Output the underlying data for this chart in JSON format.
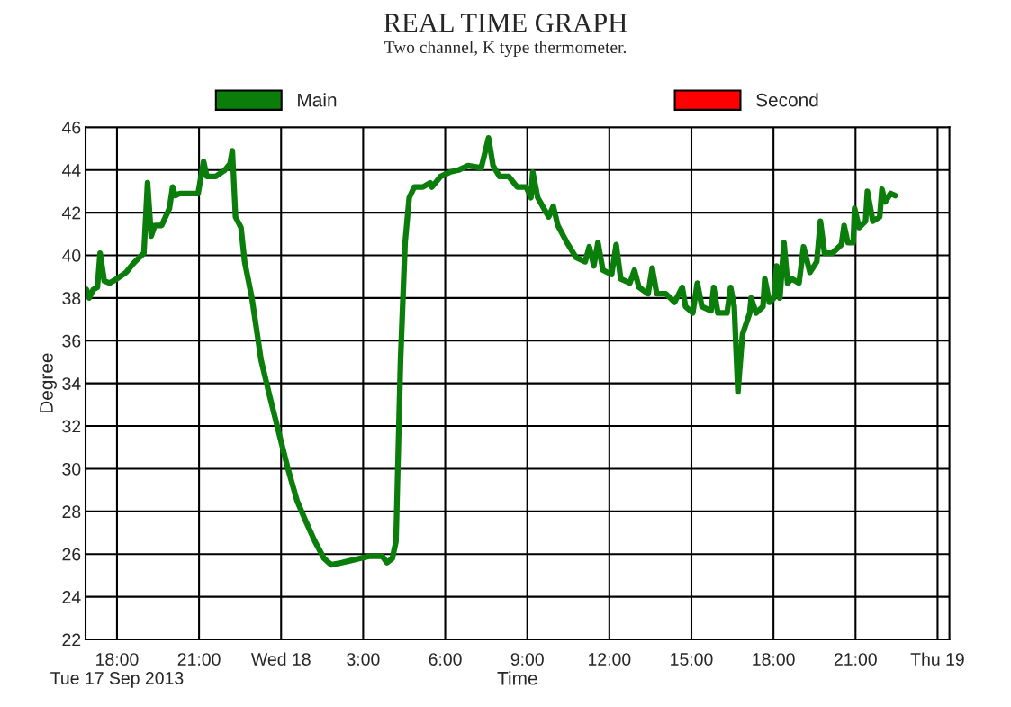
{
  "chart_data": {
    "type": "line",
    "title": "REAL TIME GRAPH",
    "subtitle": "Two channel, K type thermometer.",
    "xlabel": "Time",
    "ylabel": "Degree",
    "x": [
      "2013-09-17T16:53",
      "2013-09-17T16:59",
      "2013-09-17T17:08",
      "2013-09-17T17:17",
      "2013-09-17T17:23",
      "2013-09-17T17:32",
      "2013-09-17T17:44",
      "2013-09-17T18:00",
      "2013-09-17T18:20",
      "2013-09-17T18:35",
      "2013-09-17T18:49",
      "2013-09-17T18:59",
      "2013-09-17T19:07",
      "2013-09-17T19:15",
      "2013-09-17T19:23",
      "2013-09-17T19:38",
      "2013-09-17T19:55",
      "2013-09-17T20:02",
      "2013-09-17T20:08",
      "2013-09-17T20:18",
      "2013-09-17T20:58",
      "2013-09-17T21:10",
      "2013-09-17T21:17",
      "2013-09-17T21:37",
      "2013-09-17T21:57",
      "2013-09-17T22:08",
      "2013-09-17T22:13",
      "2013-09-17T22:20",
      "2013-09-17T22:32",
      "2013-09-17T22:40",
      "2013-09-17T22:56",
      "2013-09-17T23:16",
      "2013-09-17T23:35",
      "2013-09-17T23:55",
      "2013-09-18T00:15",
      "2013-09-18T00:35",
      "2013-09-18T00:55",
      "2013-09-18T01:14",
      "2013-09-18T01:34",
      "2013-09-18T01:50",
      "2013-09-18T02:13",
      "2013-09-18T02:33",
      "2013-09-18T02:53",
      "2013-09-18T03:13",
      "2013-09-18T03:42",
      "2013-09-18T03:52",
      "2013-09-18T04:04",
      "2013-09-18T04:12",
      "2013-09-18T04:22",
      "2013-09-18T04:32",
      "2013-09-18T04:41",
      "2013-09-18T04:52",
      "2013-09-18T05:11",
      "2013-09-18T05:27",
      "2013-09-18T05:31",
      "2013-09-18T05:50",
      "2013-09-18T06:10",
      "2013-09-18T06:30",
      "2013-09-18T06:50",
      "2013-09-18T07:19",
      "2013-09-18T07:35",
      "2013-09-18T07:45",
      "2013-09-18T07:59",
      "2013-09-18T08:19",
      "2013-09-18T08:38",
      "2013-09-18T08:58",
      "2013-09-18T09:08",
      "2013-09-18T09:12",
      "2013-09-18T09:23",
      "2013-09-18T09:47",
      "2013-09-18T09:57",
      "2013-09-18T10:07",
      "2013-09-18T10:27",
      "2013-09-18T10:47",
      "2013-09-18T11:07",
      "2013-09-18T11:16",
      "2013-09-18T11:26",
      "2013-09-18T11:35",
      "2013-09-18T11:46",
      "2013-09-18T12:05",
      "2013-09-18T12:15",
      "2013-09-18T12:25",
      "2013-09-18T12:45",
      "2013-09-18T12:55",
      "2013-09-18T13:05",
      "2013-09-18T13:25",
      "2013-09-18T13:34",
      "2013-09-18T13:44",
      "2013-09-18T14:04",
      "2013-09-18T14:23",
      "2013-09-18T14:40",
      "2013-09-18T14:47",
      "2013-09-18T15:03",
      "2013-09-18T15:13",
      "2013-09-18T15:23",
      "2013-09-18T15:43",
      "2013-09-18T15:49",
      "2013-09-18T15:58",
      "2013-09-18T16:18",
      "2013-09-18T16:26",
      "2013-09-18T16:34",
      "2013-09-18T16:42",
      "2013-09-18T16:52",
      "2013-09-18T17:08",
      "2013-09-18T17:11",
      "2013-09-18T17:22",
      "2013-09-18T17:37",
      "2013-09-18T17:41",
      "2013-09-18T17:51",
      "2013-09-18T18:01",
      "2013-09-18T18:07",
      "2013-09-18T18:14",
      "2013-09-18T18:23",
      "2013-09-18T18:31",
      "2013-09-18T18:40",
      "2013-09-18T18:56",
      "2013-09-18T19:06",
      "2013-09-18T19:20",
      "2013-09-18T19:35",
      "2013-09-18T19:43",
      "2013-09-18T19:52",
      "2013-09-18T20:09",
      "2013-09-18T20:29",
      "2013-09-18T20:35",
      "2013-09-18T20:43",
      "2013-09-18T20:55",
      "2013-09-18T20:58",
      "2013-09-18T21:08",
      "2013-09-18T21:22",
      "2013-09-18T21:26",
      "2013-09-18T21:38",
      "2013-09-18T21:53",
      "2013-09-18T21:58",
      "2013-09-18T22:05",
      "2013-09-18T22:17",
      "2013-09-18T22:27"
    ],
    "series": [
      {
        "name": "Main",
        "color": "#0b7d0b",
        "values": [
          38.4,
          38.0,
          38.4,
          38.5,
          40.1,
          38.8,
          38.7,
          38.9,
          39.2,
          39.6,
          39.9,
          40.1,
          43.4,
          40.9,
          41.4,
          41.4,
          42.2,
          43.2,
          42.8,
          42.9,
          42.9,
          44.4,
          43.7,
          43.7,
          44.0,
          44.3,
          44.9,
          41.8,
          41.3,
          39.7,
          38.0,
          35.1,
          33.4,
          31.7,
          30.0,
          28.5,
          27.5,
          26.6,
          25.8,
          25.5,
          25.6,
          25.7,
          25.8,
          25.9,
          25.9,
          25.6,
          25.8,
          26.6,
          35.1,
          40.6,
          42.7,
          43.2,
          43.2,
          43.4,
          43.2,
          43.7,
          43.9,
          44.0,
          44.2,
          44.1,
          45.5,
          44.2,
          43.7,
          43.7,
          43.2,
          43.2,
          42.7,
          43.9,
          42.7,
          41.8,
          42.3,
          41.4,
          40.6,
          39.9,
          39.7,
          40.4,
          39.5,
          40.6,
          39.3,
          39.1,
          40.5,
          38.9,
          38.7,
          39.3,
          38.5,
          38.2,
          39.4,
          38.2,
          38.2,
          37.8,
          38.5,
          37.6,
          37.3,
          38.7,
          37.6,
          37.4,
          38.5,
          37.3,
          37.3,
          38.5,
          37.6,
          33.6,
          36.3,
          37.3,
          38.0,
          37.3,
          37.6,
          38.9,
          37.8,
          38.0,
          39.5,
          38.0,
          40.6,
          38.7,
          38.9,
          38.7,
          40.4,
          39.2,
          39.7,
          41.6,
          40.1,
          40.1,
          40.5,
          41.4,
          40.6,
          40.6,
          42.2,
          41.3,
          41.6,
          43.0,
          41.6,
          41.8,
          43.1,
          42.5,
          42.9,
          42.8
        ]
      },
      {
        "name": "Second",
        "color": "#ff0000",
        "values": [
          null,
          null,
          null,
          null,
          null,
          null,
          null,
          null,
          null,
          null,
          null,
          null,
          null,
          null,
          null,
          null,
          null,
          null,
          null,
          null,
          null,
          null,
          null,
          null,
          null,
          null,
          null,
          null,
          null,
          null,
          null,
          null,
          null,
          null,
          null,
          null,
          null,
          null,
          null,
          null,
          null,
          null,
          null,
          null,
          null,
          null,
          null,
          null,
          null,
          null,
          null,
          null,
          null,
          null,
          null,
          null,
          null,
          null,
          null,
          null,
          null,
          null,
          null,
          null,
          null,
          null,
          null,
          null,
          null,
          null,
          null,
          null,
          null,
          null,
          null,
          null,
          null,
          null,
          null,
          null,
          null,
          null,
          null,
          null,
          null,
          null,
          null,
          null,
          null,
          null,
          null,
          null,
          null,
          null,
          null,
          null,
          null,
          null,
          null,
          null,
          null,
          null,
          null,
          null,
          null,
          null,
          null,
          null,
          null,
          null,
          null,
          null,
          null,
          null,
          null,
          null,
          null,
          null,
          null,
          null,
          null,
          null,
          null,
          null,
          null,
          null,
          null,
          null,
          null,
          null,
          null,
          null,
          null,
          null,
          null,
          null
        ]
      }
    ],
    "xlim": [
      "2013-09-17T16:51",
      "2013-09-19T00:26"
    ],
    "xticks": [
      {
        "value": "2013-09-17T18:00",
        "label": "18:00\nTue 17 Sep 2013"
      },
      {
        "value": "2013-09-17T21:00",
        "label": "21:00"
      },
      {
        "value": "2013-09-18",
        "label": "Wed 18"
      },
      {
        "value": "2013-09-18T03:00",
        "label": "3:00"
      },
      {
        "value": "2013-09-18T06:00",
        "label": "6:00"
      },
      {
        "value": "2013-09-18T09:00",
        "label": "9:00"
      },
      {
        "value": "2013-09-18T12:00",
        "label": "12:00"
      },
      {
        "value": "2013-09-18T15:00",
        "label": "15:00"
      },
      {
        "value": "2013-09-18T18:00",
        "label": "18:00"
      },
      {
        "value": "2013-09-18T21:00",
        "label": "21:00"
      },
      {
        "value": "2013-09-19",
        "label": "Thu 19"
      }
    ],
    "ylim": [
      22,
      46
    ],
    "yticks": [
      22,
      24,
      26,
      28,
      30,
      32,
      34,
      36,
      38,
      40,
      42,
      44,
      46
    ],
    "grid": true,
    "legend": "top",
    "line_style": "solid",
    "marker": "none"
  }
}
